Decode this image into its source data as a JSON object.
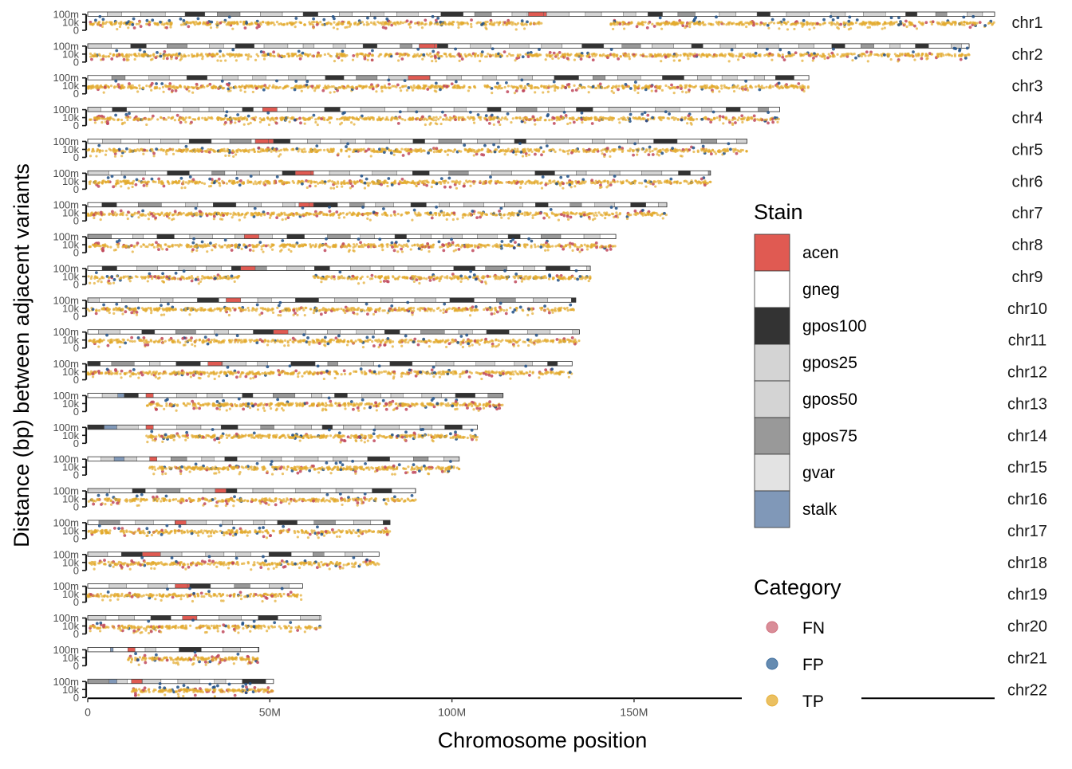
{
  "chart_data": {
    "type": "scatter",
    "xlabel": "Chromosome position",
    "ylabel": "Distance (bp) between adjacent variants",
    "x_axis": {
      "range_bp": [
        0,
        249000000
      ],
      "ticks": [
        {
          "value": 0,
          "label": "0"
        },
        {
          "value": 50000000,
          "label": "50M"
        },
        {
          "value": 100000000,
          "label": "100M"
        },
        {
          "value": 150000000,
          "label": "150M"
        }
      ]
    },
    "y_axis": {
      "scale": "log",
      "ticks": [
        {
          "value": 1,
          "label": "0"
        },
        {
          "value": 10000,
          "label": "10k"
        },
        {
          "value": 100000000,
          "label": "100m"
        }
      ]
    },
    "chromosomes": [
      {
        "name": "chr1",
        "length": 249000000,
        "centromere": [
          121000000,
          126000000
        ],
        "stalk": []
      },
      {
        "name": "chr2",
        "length": 242000000,
        "centromere": [
          91000000,
          96000000
        ],
        "stalk": []
      },
      {
        "name": "chr3",
        "length": 198000000,
        "centromere": [
          88000000,
          94000000
        ],
        "stalk": []
      },
      {
        "name": "chr4",
        "length": 190000000,
        "centromere": [
          48000000,
          52000000
        ],
        "stalk": []
      },
      {
        "name": "chr5",
        "length": 181000000,
        "centromere": [
          46000000,
          51000000
        ],
        "stalk": []
      },
      {
        "name": "chr6",
        "length": 171000000,
        "centromere": [
          57000000,
          62000000
        ],
        "stalk": []
      },
      {
        "name": "chr7",
        "length": 159000000,
        "centromere": [
          58000000,
          62000000
        ],
        "stalk": []
      },
      {
        "name": "chr8",
        "length": 145000000,
        "centromere": [
          43000000,
          47000000
        ],
        "stalk": []
      },
      {
        "name": "chr9",
        "length": 138000000,
        "centromere": [
          42000000,
          46000000
        ],
        "stalk": []
      },
      {
        "name": "chr10",
        "length": 134000000,
        "centromere": [
          38000000,
          42000000
        ],
        "stalk": []
      },
      {
        "name": "chr11",
        "length": 135000000,
        "centromere": [
          51000000,
          55000000
        ],
        "stalk": []
      },
      {
        "name": "chr12",
        "length": 133000000,
        "centromere": [
          33000000,
          37000000
        ],
        "stalk": []
      },
      {
        "name": "chr13",
        "length": 114000000,
        "centromere": [
          16000000,
          18000000
        ],
        "stalk": [
          4000000,
          10000000
        ]
      },
      {
        "name": "chr14",
        "length": 107000000,
        "centromere": [
          16000000,
          18000000
        ],
        "stalk": [
          4000000,
          8000000
        ]
      },
      {
        "name": "chr15",
        "length": 102000000,
        "centromere": [
          17000000,
          19000000
        ],
        "stalk": [
          4000000,
          10000000
        ]
      },
      {
        "name": "chr16",
        "length": 90000000,
        "centromere": [
          35000000,
          38000000
        ],
        "stalk": []
      },
      {
        "name": "chr17",
        "length": 83000000,
        "centromere": [
          24000000,
          27000000
        ],
        "stalk": []
      },
      {
        "name": "chr18",
        "length": 80000000,
        "centromere": [
          15000000,
          20000000
        ],
        "stalk": []
      },
      {
        "name": "chr19",
        "length": 59000000,
        "centromere": [
          24000000,
          28000000
        ],
        "stalk": []
      },
      {
        "name": "chr20",
        "length": 64000000,
        "centromere": [
          26000000,
          30000000
        ],
        "stalk": []
      },
      {
        "name": "chr21",
        "length": 47000000,
        "centromere": [
          11000000,
          13000000
        ],
        "stalk": [
          3000000,
          7000000
        ]
      },
      {
        "name": "chr22",
        "length": 51000000,
        "centromere": [
          12000000,
          15000000
        ],
        "stalk": [
          4000000,
          8000000
        ]
      }
    ],
    "legend": {
      "stain": {
        "title": "Stain",
        "entries": [
          {
            "label": "acen",
            "color": "#E05A52"
          },
          {
            "label": "gneg",
            "color": "#FFFFFF"
          },
          {
            "label": "gpos100",
            "color": "#333333"
          },
          {
            "label": "gpos25",
            "color": "#D4D4D4"
          },
          {
            "label": "gpos50",
            "color": "#D4D4D4"
          },
          {
            "label": "gpos75",
            "color": "#999999"
          },
          {
            "label": "gvar",
            "color": "#E3E3E3"
          },
          {
            "label": "stalk",
            "color": "#8098B8"
          }
        ]
      },
      "category": {
        "title": "Category",
        "entries": [
          {
            "label": "FN",
            "color": "#D0707E"
          },
          {
            "label": "FP",
            "color": "#3F6E9E"
          },
          {
            "label": "TP",
            "color": "#E6B03A"
          }
        ]
      }
    },
    "point_colors": {
      "FN": "#C0485C",
      "FP": "#1F4F86",
      "TP": "#E2A92C"
    },
    "typical_log10_distance": {
      "TP": [
        2.5,
        4.2
      ],
      "FN": [
        1.0,
        5.0
      ],
      "FP": [
        2.0,
        6.5
      ]
    }
  }
}
